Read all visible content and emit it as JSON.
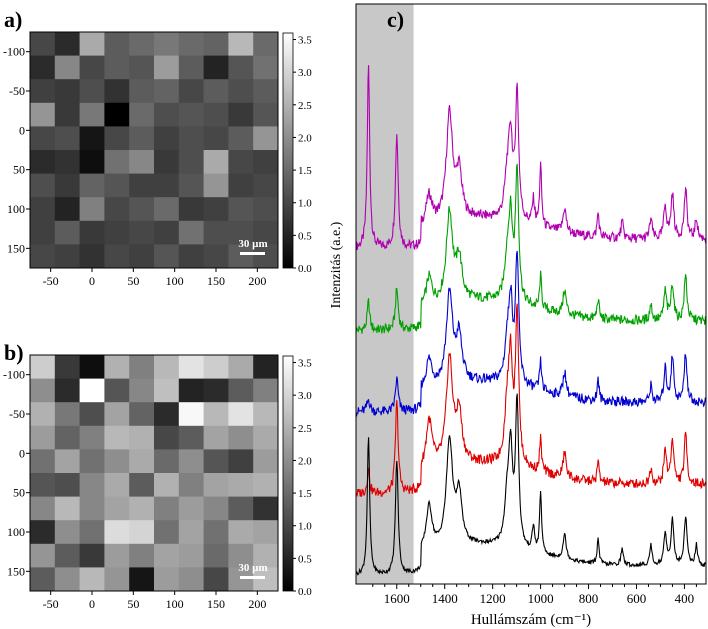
{
  "panels": {
    "a": {
      "label": "a)"
    },
    "b": {
      "label": "b)"
    },
    "c": {
      "label": "c)"
    }
  },
  "colors": {
    "c_highlight_band": "#c8c8c8",
    "spectra": [
      "#b000b0",
      "#00a000",
      "#0000d0",
      "#e00000",
      "#000000"
    ]
  },
  "chart_data": [
    {
      "type": "heatmap",
      "panel": "a)",
      "x_ticks": [
        -50,
        0,
        50,
        100,
        150,
        200
      ],
      "y_ticks": [
        -100,
        -50,
        0,
        50,
        100,
        150
      ],
      "x_range": [
        -75,
        225
      ],
      "y_range": [
        -125,
        175
      ],
      "colorbar": {
        "min": 0.0,
        "max": 3.6,
        "ticks": [
          "0.0",
          "0.5",
          "1.0",
          "1.5",
          "2.0",
          "2.5",
          "3.0",
          "3.5"
        ],
        "colormap": "grayscale"
      },
      "scale_bar": "30 µm",
      "values": [
        [
          1.0,
          0.6,
          2.4,
          1.3,
          1.5,
          1.7,
          1.5,
          1.4,
          2.6,
          1.5
        ],
        [
          0.6,
          1.9,
          1.0,
          1.3,
          1.2,
          2.2,
          1.3,
          0.5,
          1.2,
          1.6
        ],
        [
          0.9,
          0.8,
          1.1,
          0.7,
          1.3,
          1.4,
          1.0,
          1.3,
          1.1,
          1.3
        ],
        [
          2.1,
          0.8,
          1.7,
          0.0,
          1.5,
          1.1,
          1.2,
          1.1,
          0.8,
          1.2
        ],
        [
          1.0,
          1.1,
          0.3,
          1.0,
          1.3,
          0.9,
          1.1,
          1.0,
          1.3,
          2.1
        ],
        [
          0.6,
          0.7,
          0.2,
          1.6,
          1.9,
          0.8,
          1.1,
          2.4,
          1.0,
          0.9
        ],
        [
          1.1,
          0.8,
          1.4,
          1.2,
          0.9,
          0.9,
          1.2,
          2.1,
          0.9,
          1.0
        ],
        [
          0.9,
          0.5,
          1.8,
          1.0,
          1.2,
          1.5,
          0.8,
          0.9,
          1.2,
          1.1
        ],
        [
          0.9,
          1.3,
          0.8,
          0.9,
          1.0,
          0.9,
          1.6,
          1.1,
          1.1,
          1.0
        ],
        [
          1.0,
          0.9,
          0.7,
          1.0,
          0.9,
          1.2,
          0.9,
          1.0,
          1.3,
          1.1
        ]
      ]
    },
    {
      "type": "heatmap",
      "panel": "b)",
      "x_ticks": [
        -50,
        0,
        50,
        100,
        150,
        200
      ],
      "y_ticks": [
        -100,
        -50,
        0,
        50,
        100,
        150
      ],
      "x_range": [
        -75,
        225
      ],
      "y_range": [
        -125,
        175
      ],
      "colorbar": {
        "min": 0.0,
        "max": 3.6,
        "ticks": [
          "0.0",
          "0.5",
          "1.0",
          "1.5",
          "2.0",
          "2.5",
          "3.0",
          "3.5"
        ],
        "colormap": "grayscale"
      },
      "scale_bar": "30 µm",
      "values": [
        [
          2.9,
          0.8,
          0.2,
          2.5,
          1.8,
          2.6,
          3.2,
          2.9,
          2.4,
          0.5
        ],
        [
          2.0,
          0.6,
          3.6,
          1.2,
          1.9,
          2.7,
          0.5,
          0.6,
          1.3,
          1.8
        ],
        [
          2.5,
          1.7,
          1.1,
          2.3,
          1.4,
          0.6,
          3.5,
          2.6,
          3.2,
          2.6
        ],
        [
          2.2,
          1.4,
          1.8,
          2.6,
          2.5,
          1.0,
          1.3,
          2.3,
          2.0,
          2.4
        ],
        [
          1.6,
          2.3,
          1.6,
          2.0,
          2.4,
          1.5,
          2.0,
          1.2,
          0.9,
          2.2
        ],
        [
          1.2,
          1.1,
          1.9,
          2.4,
          1.3,
          2.5,
          1.8,
          2.3,
          2.4,
          2.5
        ],
        [
          1.9,
          2.6,
          1.9,
          2.3,
          2.5,
          1.8,
          2.2,
          1.9,
          1.3,
          0.7
        ],
        [
          0.6,
          2.0,
          1.6,
          3.1,
          3.0,
          1.6,
          2.3,
          1.6,
          2.4,
          2.3
        ],
        [
          2.1,
          1.3,
          0.8,
          2.2,
          1.8,
          2.3,
          2.2,
          1.5,
          2.0,
          2.5
        ],
        [
          1.3,
          2.0,
          2.6,
          2.1,
          0.3,
          2.2,
          2.0,
          1.0,
          2.1,
          2.7
        ]
      ]
    },
    {
      "type": "line",
      "panel": "c)",
      "xlabel": "Hullámszám (cm⁻¹)",
      "ylabel": "Intenzitás (a.e.)",
      "x_reversed": true,
      "xlim": [
        1770,
        310
      ],
      "x_ticks": [
        1600,
        1400,
        1200,
        1000,
        800,
        600,
        400
      ],
      "highlight_band": [
        1770,
        1530
      ],
      "spectra": [
        {
          "color": "#b000b0",
          "offset": 4.0,
          "peaks": [
            [
              1718,
              2.25,
              6
            ],
            [
              1600,
              1.4,
              7
            ],
            [
              1465,
              0.35,
              15
            ],
            [
              1380,
              1.3,
              16
            ],
            [
              1340,
              0.55,
              14
            ],
            [
              1140,
              0.45,
              12
            ],
            [
              1125,
              0.95,
              10
            ],
            [
              1098,
              1.55,
              8
            ],
            [
              1030,
              0.3,
              6
            ],
            [
              1000,
              0.75,
              5
            ],
            [
              900,
              0.3,
              8
            ],
            [
              760,
              0.3,
              5
            ],
            [
              660,
              0.2,
              6
            ],
            [
              540,
              0.25,
              6
            ],
            [
              480,
              0.4,
              7
            ],
            [
              450,
              0.55,
              7
            ],
            [
              395,
              0.6,
              7
            ],
            [
              350,
              0.25,
              6
            ]
          ]
        },
        {
          "color": "#00a000",
          "offset": 3.0,
          "peaks": [
            [
              1718,
              0.35,
              6
            ],
            [
              1600,
              0.5,
              7
            ],
            [
              1465,
              0.35,
              15
            ],
            [
              1380,
              1.1,
              16
            ],
            [
              1340,
              0.5,
              14
            ],
            [
              1140,
              0.45,
              12
            ],
            [
              1125,
              0.95,
              10
            ],
            [
              1098,
              1.6,
              8
            ],
            [
              1000,
              0.4,
              5
            ],
            [
              900,
              0.3,
              8
            ],
            [
              760,
              0.25,
              5
            ],
            [
              540,
              0.2,
              6
            ],
            [
              480,
              0.35,
              7
            ],
            [
              450,
              0.45,
              7
            ],
            [
              395,
              0.55,
              7
            ]
          ]
        },
        {
          "color": "#0000d0",
          "offset": 2.0,
          "peaks": [
            [
              1718,
              0.15,
              8
            ],
            [
              1600,
              0.4,
              7
            ],
            [
              1465,
              0.35,
              15
            ],
            [
              1380,
              1.1,
              16
            ],
            [
              1340,
              0.55,
              14
            ],
            [
              1140,
              0.4,
              12
            ],
            [
              1125,
              0.95,
              10
            ],
            [
              1098,
              1.55,
              8
            ],
            [
              1000,
              0.35,
              5
            ],
            [
              900,
              0.3,
              8
            ],
            [
              760,
              0.25,
              5
            ],
            [
              540,
              0.2,
              6
            ],
            [
              480,
              0.4,
              7
            ],
            [
              450,
              0.55,
              7
            ],
            [
              395,
              0.6,
              7
            ]
          ]
        },
        {
          "color": "#e00000",
          "offset": 1.0,
          "peaks": [
            [
              1718,
              0.3,
              6
            ],
            [
              1600,
              1.1,
              7
            ],
            [
              1465,
              0.6,
              15
            ],
            [
              1380,
              1.3,
              16
            ],
            [
              1340,
              0.6,
              14
            ],
            [
              1140,
              0.6,
              12
            ],
            [
              1125,
              1.2,
              10
            ],
            [
              1098,
              1.85,
              8
            ],
            [
              1000,
              0.4,
              5
            ],
            [
              900,
              0.3,
              8
            ],
            [
              760,
              0.25,
              5
            ],
            [
              540,
              0.2,
              6
            ],
            [
              480,
              0.4,
              7
            ],
            [
              450,
              0.55,
              7
            ],
            [
              395,
              0.6,
              7
            ]
          ]
        },
        {
          "color": "#000000",
          "offset": 0.0,
          "peaks": [
            [
              1718,
              1.7,
              6
            ],
            [
              1600,
              1.4,
              7
            ],
            [
              1465,
              0.55,
              15
            ],
            [
              1380,
              1.3,
              16
            ],
            [
              1340,
              0.6,
              14
            ],
            [
              1140,
              0.5,
              12
            ],
            [
              1125,
              1.1,
              10
            ],
            [
              1098,
              1.75,
              8
            ],
            [
              1030,
              0.3,
              6
            ],
            [
              1000,
              0.75,
              5
            ],
            [
              900,
              0.3,
              8
            ],
            [
              760,
              0.3,
              5
            ],
            [
              660,
              0.2,
              6
            ],
            [
              540,
              0.25,
              6
            ],
            [
              480,
              0.4,
              7
            ],
            [
              450,
              0.55,
              7
            ],
            [
              395,
              0.6,
              7
            ],
            [
              350,
              0.25,
              6
            ]
          ]
        }
      ]
    }
  ]
}
